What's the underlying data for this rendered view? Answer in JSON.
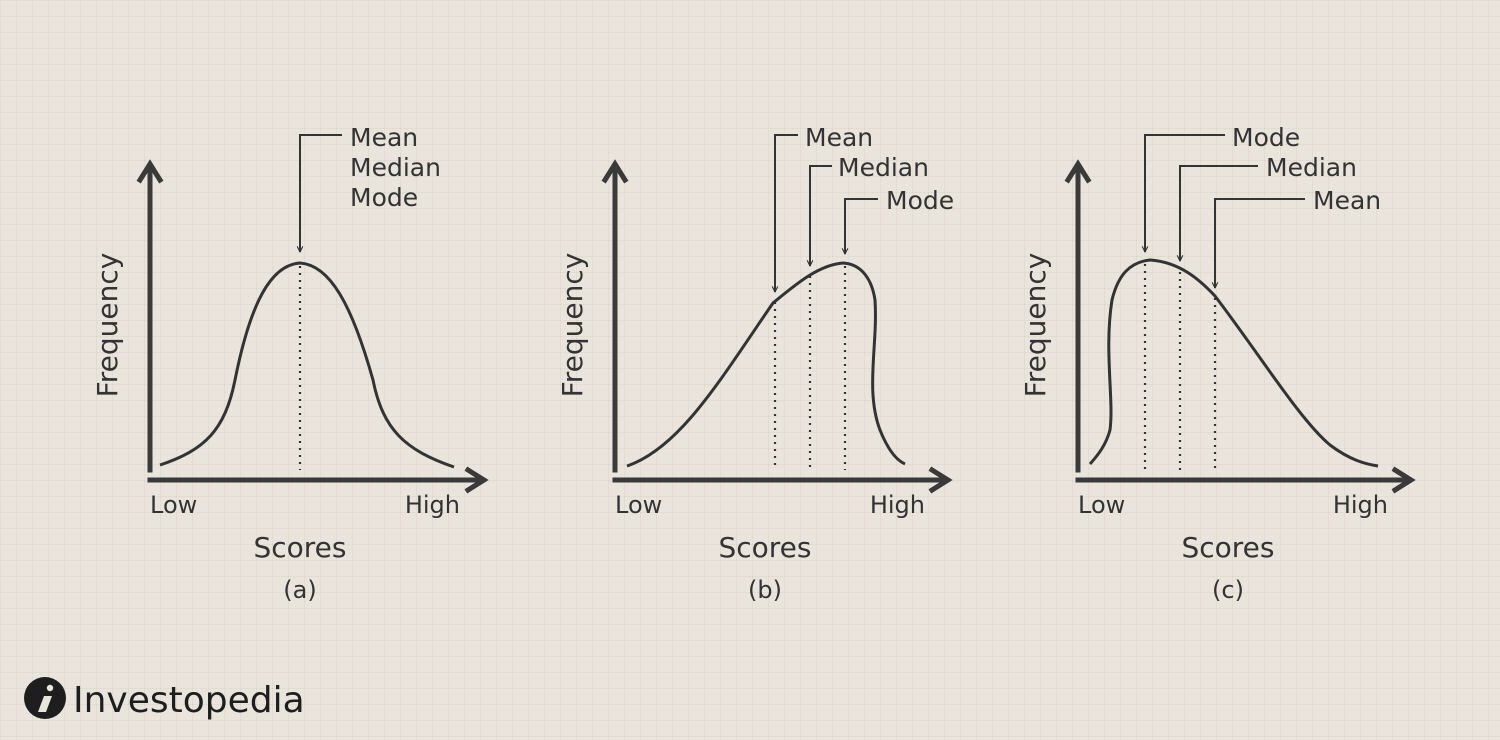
{
  "panels": [
    {
      "id": "a",
      "caption": "(a)",
      "x_axis_label": "Scores",
      "y_axis_label": "Frequency",
      "x_low_label": "Low",
      "x_high_label": "High",
      "callouts": [
        "Mean",
        "Median",
        "Mode"
      ]
    },
    {
      "id": "b",
      "caption": "(b)",
      "x_axis_label": "Scores",
      "y_axis_label": "Frequency",
      "x_low_label": "Low",
      "x_high_label": "High",
      "callouts": [
        "Mean",
        "Median",
        "Mode"
      ]
    },
    {
      "id": "c",
      "caption": "(c)",
      "x_axis_label": "Scores",
      "y_axis_label": "Frequency",
      "x_low_label": "Low",
      "x_high_label": "High",
      "callouts": [
        "Mode",
        "Median",
        "Mean"
      ]
    }
  ],
  "brand": {
    "name": "Investopedia",
    "icon": "investopedia-i-icon"
  },
  "colors": {
    "ink": "#333333",
    "background": "#e9e4dc"
  }
}
